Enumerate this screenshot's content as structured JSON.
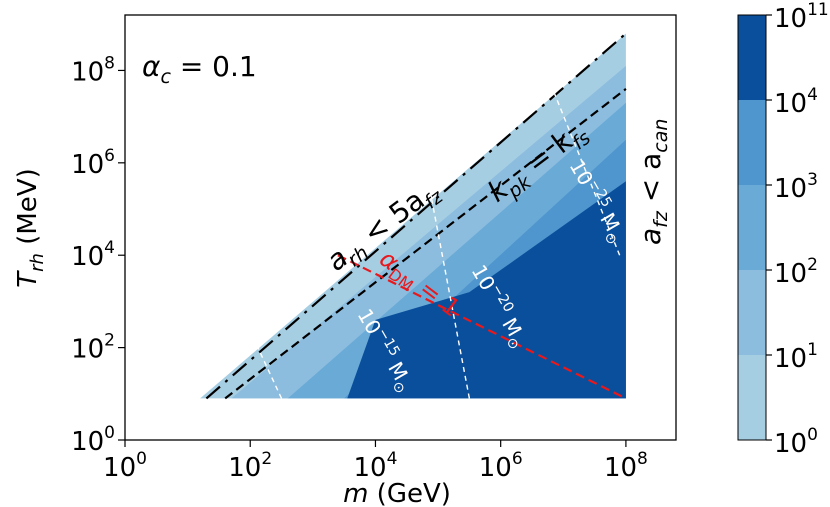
{
  "chart_data": {
    "type": "heatmap",
    "title": "",
    "xlabel": "m (GeV)",
    "ylabel": "T_rh (MeV)",
    "xscale": "log",
    "yscale": "log",
    "xlim_log10": [
      0,
      8.8
    ],
    "ylim_log10": [
      0,
      9.2
    ],
    "x_ticks": [
      {
        "base": "10",
        "exp": "0",
        "value_log10": 0
      },
      {
        "base": "10",
        "exp": "2",
        "value_log10": 2
      },
      {
        "base": "10",
        "exp": "4",
        "value_log10": 4
      },
      {
        "base": "10",
        "exp": "6",
        "value_log10": 6
      },
      {
        "base": "10",
        "exp": "8",
        "value_log10": 8
      }
    ],
    "y_ticks": [
      {
        "base": "10",
        "exp": "0",
        "value_log10": 0
      },
      {
        "base": "10",
        "exp": "2",
        "value_log10": 2
      },
      {
        "base": "10",
        "exp": "4",
        "value_log10": 4
      },
      {
        "base": "10",
        "exp": "6",
        "value_log10": 6
      },
      {
        "base": "10",
        "exp": "8",
        "value_log10": 8
      }
    ],
    "colorbar": {
      "ticks": [
        {
          "base": "10",
          "exp": "0"
        },
        {
          "base": "10",
          "exp": "1"
        },
        {
          "base": "10",
          "exp": "2"
        },
        {
          "base": "10",
          "exp": "3"
        },
        {
          "base": "10",
          "exp": "4"
        },
        {
          "base": "10",
          "exp": "11"
        }
      ],
      "level_colors": [
        "#a6cee3",
        "#8cbddf",
        "#6aaad7",
        "#4f96ce",
        "#0a4f9c"
      ]
    },
    "region": {
      "lower_boundary_log10T": 0.9,
      "max_log10m": 8.0,
      "upper_edge": [
        [
          1.2,
          0.9
        ],
        [
          8.0,
          8.8
        ]
      ]
    },
    "contour_bands": [
      {
        "level": "10^0-10^1",
        "edge": [
          [
            1.2,
            0.9
          ],
          [
            8.0,
            8.8
          ]
        ]
      },
      {
        "level": "10^1-10^2",
        "edge": [
          [
            1.7,
            0.9
          ],
          [
            8.0,
            8.1
          ]
        ]
      },
      {
        "level": "10^2-10^3",
        "edge": [
          [
            2.6,
            0.9
          ],
          [
            8.0,
            7.3
          ]
        ]
      },
      {
        "level": "10^3-10^4",
        "edge": [
          [
            3.5,
            0.9
          ],
          [
            8.0,
            6.5
          ]
        ]
      },
      {
        "level": "10^4-10^11",
        "edge": [
          [
            3.55,
            0.9
          ],
          [
            4.0,
            2.6
          ],
          [
            5.5,
            3.2
          ],
          [
            8.0,
            5.6
          ]
        ]
      }
    ],
    "lines": [
      {
        "name": "a_rh < 5a_fz",
        "style": "dashdot",
        "color": "#000000",
        "points": [
          [
            1.3,
            0.9
          ],
          [
            8.0,
            8.8
          ]
        ]
      },
      {
        "name": "k_pk = k_fs",
        "style": "dashed",
        "color": "#000000",
        "points": [
          [
            1.6,
            0.9
          ],
          [
            8.0,
            7.6
          ]
        ]
      },
      {
        "name": "alpha_DM = 1",
        "style": "dashed",
        "color": "#e8191c",
        "points": [
          [
            3.4,
            4.0
          ],
          [
            8.0,
            0.9
          ]
        ]
      },
      {
        "name": "10^-15 M_sun",
        "style": "dashed",
        "color": "#ffffff",
        "points": [
          [
            2.5,
            0.9
          ],
          [
            1.95,
            2.5
          ]
        ]
      },
      {
        "name": "10^-20 M_sun",
        "style": "dashed",
        "color": "#ffffff",
        "points": [
          [
            5.5,
            0.9
          ],
          [
            4.9,
            5.2
          ]
        ]
      },
      {
        "name": "10^-25 M_sun",
        "style": "dashed",
        "color": "#ffffff",
        "points": [
          [
            7.9,
            4.0
          ],
          [
            6.8,
            7.7
          ]
        ]
      }
    ],
    "annotations": {
      "alpha_c": "α",
      "alpha_c_sub": "c",
      "alpha_c_value": " = 0.1",
      "arh_a": "a",
      "arh_sub": "rh",
      "arh_mid": " < 5a",
      "arh_sub2": "fz",
      "kpk_k": "k",
      "kpk_sub": "pk",
      "kpk_mid": " = k",
      "kpk_sub2": "fs",
      "afz_a": "a",
      "afz_sub": "fz",
      "afz_mid": " < a",
      "afz_sub2": "can",
      "alphaDM_a": "α",
      "alphaDM_sub": "DM",
      "alphaDM_val": " = 1",
      "m15_base": "10",
      "m15_exp": "−15",
      "m15_unit": " M",
      "m15_sun": "⊙",
      "m20_base": "10",
      "m20_exp": "−20",
      "m20_unit": " M",
      "m20_sun": "⊙",
      "m25_base": "10",
      "m25_exp": "−25",
      "m25_unit": " M",
      "m25_sun": "⊙"
    },
    "axis_text": {
      "x_italic": "m",
      "x_rest": " (GeV)",
      "y_italic": "T",
      "y_sub": "rh",
      "y_rest": " (MeV)"
    }
  }
}
